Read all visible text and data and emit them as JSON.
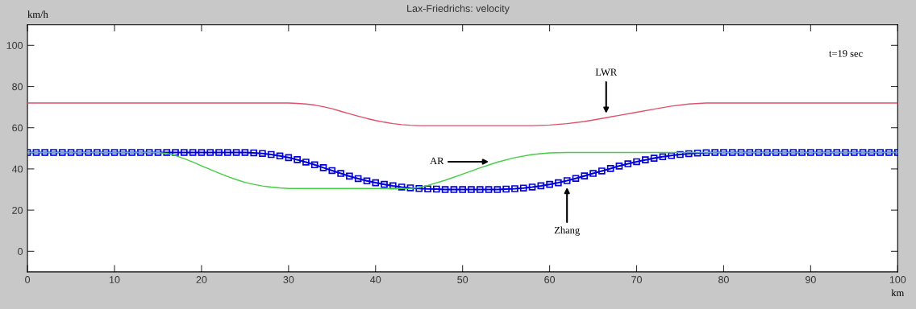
{
  "chart_data": {
    "type": "line",
    "title": "Lax-Friedrichs: velocity",
    "xlabel": "km",
    "ylabel": "km/h",
    "xlim": [
      0,
      100
    ],
    "xticks": [
      0,
      10,
      20,
      30,
      40,
      50,
      60,
      70,
      80,
      90,
      100
    ],
    "ylim": [
      -10,
      110
    ],
    "yticks": [
      0,
      20,
      40,
      60,
      80,
      100
    ],
    "grid": false,
    "legend": false,
    "series": [
      {
        "color": "#e0506a",
        "marker": "none",
        "x": [
          0,
          30,
          31,
          32,
          33,
          34,
          35,
          36,
          37,
          38,
          39,
          40,
          41,
          42,
          43,
          44,
          45,
          58,
          60,
          62,
          64,
          66,
          68,
          70,
          72,
          74,
          76,
          78,
          100
        ],
        "values": [
          72,
          72,
          71.8,
          71.5,
          71,
          70.2,
          69.2,
          68,
          66.8,
          65.6,
          64.5,
          63.5,
          62.7,
          62,
          61.5,
          61.2,
          61,
          61,
          61.3,
          62,
          63,
          64.5,
          66,
          67.5,
          69,
          70.5,
          71.5,
          72,
          72
        ]
      },
      {
        "color": "#40d040",
        "marker": "none",
        "x": [
          0,
          15,
          16,
          17,
          18,
          19,
          20,
          21,
          22,
          23,
          24,
          25,
          26,
          27,
          28,
          29,
          30,
          44,
          45,
          46,
          48,
          50,
          52,
          54,
          56,
          58,
          60,
          62,
          100
        ],
        "values": [
          48,
          48,
          47.5,
          46.5,
          45,
          43.3,
          41.5,
          39.7,
          38,
          36.3,
          34.8,
          33.5,
          32.5,
          31.7,
          31.2,
          30.8,
          30.5,
          30.5,
          31,
          32,
          34.5,
          37.5,
          40.5,
          43.3,
          45.5,
          47,
          47.8,
          48,
          48
        ]
      },
      {
        "color": "#0000e0",
        "marker": "square",
        "x": [
          0,
          1,
          2,
          3,
          4,
          5,
          6,
          7,
          8,
          9,
          10,
          11,
          12,
          13,
          14,
          15,
          16,
          17,
          18,
          19,
          20,
          21,
          22,
          23,
          24,
          25,
          26,
          27,
          28,
          29,
          30,
          31,
          32,
          33,
          34,
          35,
          36,
          37,
          38,
          39,
          40,
          41,
          42,
          43,
          44,
          45,
          46,
          47,
          48,
          49,
          50,
          51,
          52,
          53,
          54,
          55,
          56,
          57,
          58,
          59,
          60,
          61,
          62,
          63,
          64,
          65,
          66,
          67,
          68,
          69,
          70,
          71,
          72,
          73,
          74,
          75,
          76,
          77,
          78,
          79,
          80,
          81,
          82,
          83,
          84,
          85,
          86,
          87,
          88,
          89,
          90,
          91,
          92,
          93,
          94,
          95,
          96,
          97,
          98,
          99,
          100
        ],
        "values": [
          48,
          48,
          48,
          48,
          48,
          48,
          48,
          48,
          48,
          48,
          48,
          48,
          48,
          48,
          48,
          48,
          48,
          48,
          48,
          48,
          48,
          48,
          48,
          48,
          48,
          48,
          47.8,
          47.5,
          47,
          46.3,
          45.5,
          44.5,
          43.3,
          42,
          40.6,
          39.2,
          37.8,
          36.5,
          35.3,
          34.2,
          33.3,
          32.5,
          31.8,
          31.2,
          30.8,
          30.5,
          30.3,
          30.2,
          30,
          30,
          30,
          30,
          30,
          30,
          30,
          30.2,
          30.4,
          30.7,
          31.2,
          31.8,
          32.5,
          33.3,
          34.3,
          35.4,
          36.6,
          37.8,
          39,
          40.2,
          41.4,
          42.5,
          43.5,
          44.4,
          45.2,
          45.9,
          46.5,
          47,
          47.4,
          47.7,
          47.9,
          48,
          48,
          48,
          48,
          48,
          48,
          48,
          48,
          48,
          48,
          48,
          48,
          48,
          48,
          48,
          48,
          48,
          48,
          48,
          48,
          48,
          48
        ]
      }
    ],
    "annotations": [
      "t=19 sec",
      {
        "text": "LWR",
        "x": 66.5,
        "y": 67
      },
      {
        "text": "AR",
        "x": 53,
        "y": 43.5
      },
      {
        "text": "Zhang",
        "x": 62,
        "y": 31
      }
    ]
  }
}
